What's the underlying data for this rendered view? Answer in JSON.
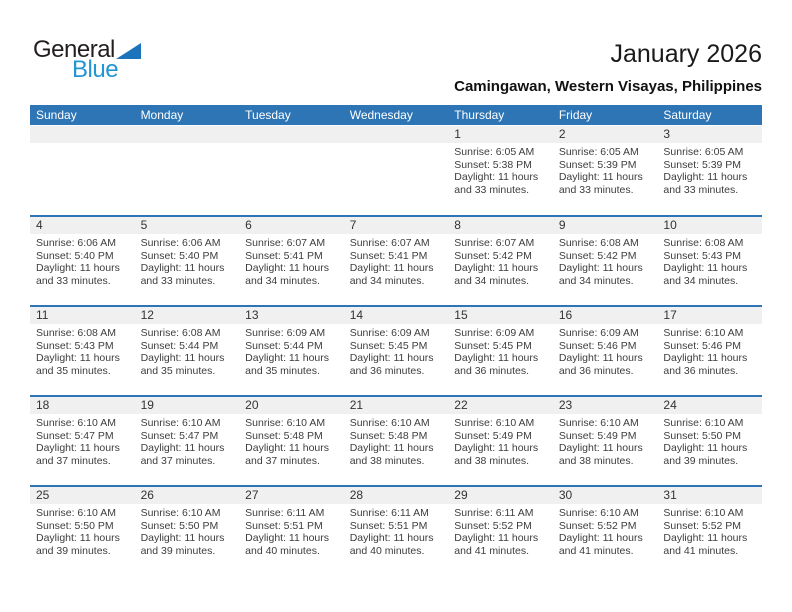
{
  "logo": {
    "part1": "General",
    "part2": "Blue"
  },
  "header": {
    "title": "January 2026",
    "subtitle": "Camingawan, Western Visayas, Philippines"
  },
  "weekdays": [
    "Sunday",
    "Monday",
    "Tuesday",
    "Wednesday",
    "Thursday",
    "Friday",
    "Saturday"
  ],
  "colors": {
    "header_bg": "#2e75b5",
    "row_divider": "#2e75b5",
    "day_band_bg": "#f0f0f0",
    "logo_black": "#231f20",
    "logo_blue": "#2395d5",
    "logo_triangle": "#1b74bb"
  },
  "weeks": [
    [
      null,
      null,
      null,
      null,
      {
        "day": "1",
        "lines": [
          "Sunrise: 6:05 AM",
          "Sunset: 5:38 PM",
          "Daylight: 11 hours",
          "and 33 minutes."
        ]
      },
      {
        "day": "2",
        "lines": [
          "Sunrise: 6:05 AM",
          "Sunset: 5:39 PM",
          "Daylight: 11 hours",
          "and 33 minutes."
        ]
      },
      {
        "day": "3",
        "lines": [
          "Sunrise: 6:05 AM",
          "Sunset: 5:39 PM",
          "Daylight: 11 hours",
          "and 33 minutes."
        ]
      }
    ],
    [
      {
        "day": "4",
        "lines": [
          "Sunrise: 6:06 AM",
          "Sunset: 5:40 PM",
          "Daylight: 11 hours",
          "and 33 minutes."
        ]
      },
      {
        "day": "5",
        "lines": [
          "Sunrise: 6:06 AM",
          "Sunset: 5:40 PM",
          "Daylight: 11 hours",
          "and 33 minutes."
        ]
      },
      {
        "day": "6",
        "lines": [
          "Sunrise: 6:07 AM",
          "Sunset: 5:41 PM",
          "Daylight: 11 hours",
          "and 34 minutes."
        ]
      },
      {
        "day": "7",
        "lines": [
          "Sunrise: 6:07 AM",
          "Sunset: 5:41 PM",
          "Daylight: 11 hours",
          "and 34 minutes."
        ]
      },
      {
        "day": "8",
        "lines": [
          "Sunrise: 6:07 AM",
          "Sunset: 5:42 PM",
          "Daylight: 11 hours",
          "and 34 minutes."
        ]
      },
      {
        "day": "9",
        "lines": [
          "Sunrise: 6:08 AM",
          "Sunset: 5:42 PM",
          "Daylight: 11 hours",
          "and 34 minutes."
        ]
      },
      {
        "day": "10",
        "lines": [
          "Sunrise: 6:08 AM",
          "Sunset: 5:43 PM",
          "Daylight: 11 hours",
          "and 34 minutes."
        ]
      }
    ],
    [
      {
        "day": "11",
        "lines": [
          "Sunrise: 6:08 AM",
          "Sunset: 5:43 PM",
          "Daylight: 11 hours",
          "and 35 minutes."
        ]
      },
      {
        "day": "12",
        "lines": [
          "Sunrise: 6:08 AM",
          "Sunset: 5:44 PM",
          "Daylight: 11 hours",
          "and 35 minutes."
        ]
      },
      {
        "day": "13",
        "lines": [
          "Sunrise: 6:09 AM",
          "Sunset: 5:44 PM",
          "Daylight: 11 hours",
          "and 35 minutes."
        ]
      },
      {
        "day": "14",
        "lines": [
          "Sunrise: 6:09 AM",
          "Sunset: 5:45 PM",
          "Daylight: 11 hours",
          "and 36 minutes."
        ]
      },
      {
        "day": "15",
        "lines": [
          "Sunrise: 6:09 AM",
          "Sunset: 5:45 PM",
          "Daylight: 11 hours",
          "and 36 minutes."
        ]
      },
      {
        "day": "16",
        "lines": [
          "Sunrise: 6:09 AM",
          "Sunset: 5:46 PM",
          "Daylight: 11 hours",
          "and 36 minutes."
        ]
      },
      {
        "day": "17",
        "lines": [
          "Sunrise: 6:10 AM",
          "Sunset: 5:46 PM",
          "Daylight: 11 hours",
          "and 36 minutes."
        ]
      }
    ],
    [
      {
        "day": "18",
        "lines": [
          "Sunrise: 6:10 AM",
          "Sunset: 5:47 PM",
          "Daylight: 11 hours",
          "and 37 minutes."
        ]
      },
      {
        "day": "19",
        "lines": [
          "Sunrise: 6:10 AM",
          "Sunset: 5:47 PM",
          "Daylight: 11 hours",
          "and 37 minutes."
        ]
      },
      {
        "day": "20",
        "lines": [
          "Sunrise: 6:10 AM",
          "Sunset: 5:48 PM",
          "Daylight: 11 hours",
          "and 37 minutes."
        ]
      },
      {
        "day": "21",
        "lines": [
          "Sunrise: 6:10 AM",
          "Sunset: 5:48 PM",
          "Daylight: 11 hours",
          "and 38 minutes."
        ]
      },
      {
        "day": "22",
        "lines": [
          "Sunrise: 6:10 AM",
          "Sunset: 5:49 PM",
          "Daylight: 11 hours",
          "and 38 minutes."
        ]
      },
      {
        "day": "23",
        "lines": [
          "Sunrise: 6:10 AM",
          "Sunset: 5:49 PM",
          "Daylight: 11 hours",
          "and 38 minutes."
        ]
      },
      {
        "day": "24",
        "lines": [
          "Sunrise: 6:10 AM",
          "Sunset: 5:50 PM",
          "Daylight: 11 hours",
          "and 39 minutes."
        ]
      }
    ],
    [
      {
        "day": "25",
        "lines": [
          "Sunrise: 6:10 AM",
          "Sunset: 5:50 PM",
          "Daylight: 11 hours",
          "and 39 minutes."
        ]
      },
      {
        "day": "26",
        "lines": [
          "Sunrise: 6:10 AM",
          "Sunset: 5:50 PM",
          "Daylight: 11 hours",
          "and 39 minutes."
        ]
      },
      {
        "day": "27",
        "lines": [
          "Sunrise: 6:11 AM",
          "Sunset: 5:51 PM",
          "Daylight: 11 hours",
          "and 40 minutes."
        ]
      },
      {
        "day": "28",
        "lines": [
          "Sunrise: 6:11 AM",
          "Sunset: 5:51 PM",
          "Daylight: 11 hours",
          "and 40 minutes."
        ]
      },
      {
        "day": "29",
        "lines": [
          "Sunrise: 6:11 AM",
          "Sunset: 5:52 PM",
          "Daylight: 11 hours",
          "and 41 minutes."
        ]
      },
      {
        "day": "30",
        "lines": [
          "Sunrise: 6:10 AM",
          "Sunset: 5:52 PM",
          "Daylight: 11 hours",
          "and 41 minutes."
        ]
      },
      {
        "day": "31",
        "lines": [
          "Sunrise: 6:10 AM",
          "Sunset: 5:52 PM",
          "Daylight: 11 hours",
          "and 41 minutes."
        ]
      }
    ]
  ]
}
